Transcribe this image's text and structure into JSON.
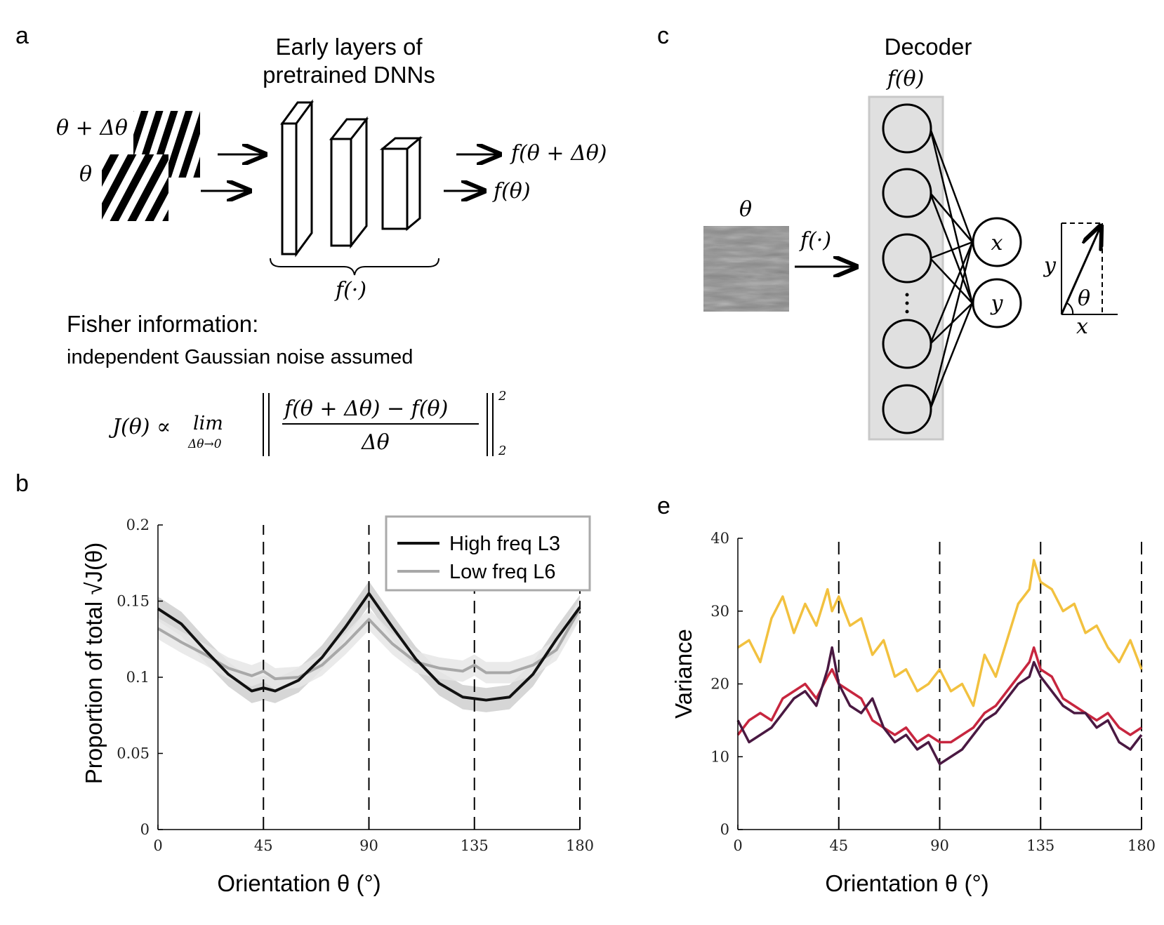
{
  "panel_letters": {
    "a": "a",
    "b": "b",
    "c": "c",
    "e": "e"
  },
  "panel_a": {
    "title_line1": "Early layers of",
    "title_line2": "pretrained DNNs",
    "input_shifted_label": "θ + Δθ",
    "input_label": "θ",
    "output_shifted_label": "f(θ + Δθ)",
    "output_label": "f(θ)",
    "brace_label": "f(·)",
    "fisher_title": "Fisher information:",
    "fisher_subtitle": "independent Gaussian noise assumed",
    "formula": {
      "lhs": "J(θ) ∝",
      "lim": "lim",
      "lim_sub": "Δθ→0",
      "numerator": "f(θ + Δθ) − f(θ)",
      "denominator": "Δθ",
      "sup": "2",
      "sub": "2"
    }
  },
  "panel_c": {
    "title": "Decoder",
    "layer_label": "f(θ)",
    "input_label": "θ",
    "arrow_label": "f(·)",
    "out_x": "x",
    "out_y": "y",
    "diagram_y": "y",
    "diagram_theta": "θ",
    "diagram_x": "x"
  },
  "colors": {
    "high_freq": "#111111",
    "low_freq": "#a8a8a8",
    "yellow": "#f2c13f",
    "red": "#c7263f",
    "purple": "#4a1942"
  },
  "chart_data": [
    {
      "id": "b",
      "type": "line",
      "xlabel": "Orientation θ (°)",
      "ylabel": "Proportion of total √J(θ)",
      "xlim": [
        0,
        180
      ],
      "ylim": [
        0,
        0.2
      ],
      "xticks": [
        "0",
        "45",
        "90",
        "135",
        "180"
      ],
      "yticks": [
        "0",
        "0.05",
        "0.1",
        "0.15",
        "0.2"
      ],
      "dashed_lines_x": [
        45,
        90,
        135,
        180
      ],
      "legend_position": "top-right",
      "x": [
        0,
        10,
        20,
        30,
        40,
        45,
        50,
        60,
        70,
        80,
        90,
        100,
        110,
        120,
        130,
        135,
        140,
        150,
        160,
        170,
        180
      ],
      "series": [
        {
          "name": "High freq L3",
          "color_key": "high_freq",
          "values": [
            0.145,
            0.135,
            0.118,
            0.102,
            0.091,
            0.093,
            0.091,
            0.098,
            0.113,
            0.133,
            0.155,
            0.133,
            0.112,
            0.096,
            0.087,
            0.086,
            0.085,
            0.087,
            0.102,
            0.125,
            0.146
          ],
          "band": 0.008
        },
        {
          "name": "Low freq L6",
          "color_key": "low_freq",
          "values": [
            0.132,
            0.123,
            0.115,
            0.106,
            0.101,
            0.104,
            0.099,
            0.1,
            0.108,
            0.122,
            0.138,
            0.122,
            0.11,
            0.106,
            0.104,
            0.108,
            0.103,
            0.103,
            0.108,
            0.118,
            0.145
          ],
          "band": 0.007
        }
      ]
    },
    {
      "id": "e",
      "type": "line",
      "xlabel": "Orientation θ (°)",
      "ylabel": "Variance",
      "xlim": [
        0,
        180
      ],
      "ylim": [
        0,
        40
      ],
      "xticks": [
        "0",
        "45",
        "90",
        "135",
        "180"
      ],
      "yticks": [
        "0",
        "10",
        "20",
        "30",
        "40"
      ],
      "dashed_lines_x": [
        45,
        90,
        135,
        180
      ],
      "x": [
        0,
        5,
        10,
        15,
        20,
        25,
        30,
        35,
        40,
        42,
        45,
        50,
        55,
        60,
        65,
        70,
        75,
        80,
        85,
        90,
        95,
        100,
        105,
        110,
        115,
        120,
        125,
        130,
        132,
        135,
        140,
        145,
        150,
        155,
        160,
        165,
        170,
        175,
        180
      ],
      "series": [
        {
          "color_key": "yellow",
          "values": [
            25,
            26,
            23,
            29,
            32,
            27,
            31,
            28,
            33,
            30,
            32,
            28,
            29,
            24,
            26,
            21,
            22,
            19,
            20,
            22,
            19,
            20,
            17,
            24,
            21,
            26,
            31,
            33,
            37,
            34,
            33,
            30,
            31,
            27,
            28,
            25,
            23,
            26,
            22
          ]
        },
        {
          "color_key": "red",
          "values": [
            13,
            15,
            16,
            15,
            18,
            19,
            20,
            18,
            21,
            22,
            20,
            19,
            18,
            15,
            14,
            13,
            14,
            12,
            13,
            12,
            12,
            13,
            14,
            16,
            17,
            19,
            21,
            23,
            25,
            22,
            21,
            18,
            17,
            16,
            15,
            16,
            14,
            13,
            14
          ]
        },
        {
          "color_key": "purple",
          "values": [
            15,
            12,
            13,
            14,
            16,
            18,
            19,
            17,
            22,
            25,
            20,
            17,
            16,
            18,
            14,
            12,
            13,
            11,
            12,
            9,
            10,
            11,
            13,
            15,
            16,
            18,
            20,
            21,
            23,
            21,
            19,
            17,
            16,
            16,
            14,
            15,
            12,
            11,
            13
          ]
        }
      ]
    }
  ]
}
